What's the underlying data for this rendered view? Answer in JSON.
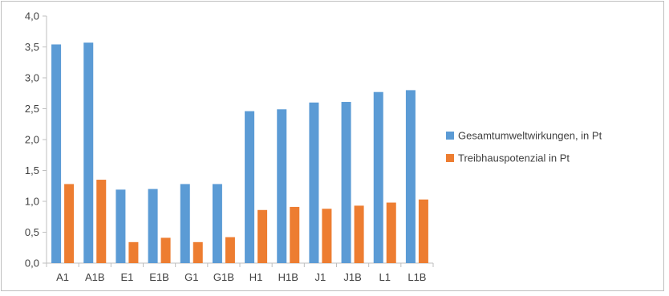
{
  "chart_data": {
    "type": "bar",
    "title": "",
    "xlabel": "",
    "ylabel": "",
    "categories": [
      "A1",
      "A1B",
      "E1",
      "E1B",
      "G1",
      "G1B",
      "H1",
      "H1B",
      "J1",
      "J1B",
      "L1",
      "L1B"
    ],
    "series": [
      {
        "name": "Gesamtumweltwirkungen, in Pt",
        "color": "#5B9BD5",
        "values": [
          3.54,
          3.57,
          1.19,
          1.2,
          1.28,
          1.28,
          2.46,
          2.49,
          2.6,
          2.61,
          2.77,
          2.8
        ]
      },
      {
        "name": "Treibhauspotenzial in Pt",
        "color": "#ED7D31",
        "values": [
          1.28,
          1.35,
          0.34,
          0.41,
          0.34,
          0.42,
          0.86,
          0.91,
          0.88,
          0.93,
          0.98,
          1.03
        ]
      }
    ],
    "ylim": [
      0,
      4.0
    ],
    "yticks": [
      "0,0",
      "0,5",
      "1,0",
      "1,5",
      "2,0",
      "2,5",
      "3,0",
      "3,5",
      "4,0"
    ],
    "grid": false,
    "legend_position": "right"
  }
}
